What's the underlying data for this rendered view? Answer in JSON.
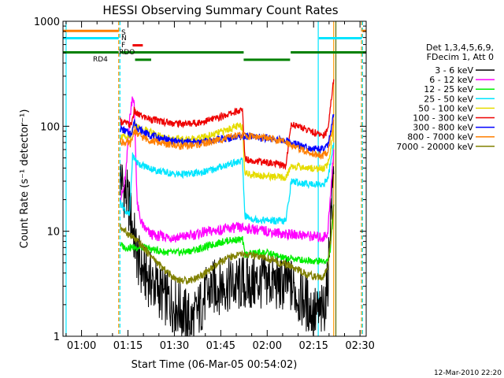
{
  "chart_data": {
    "type": "line",
    "title": "HESSI Observing Summary Count Rates",
    "xlabel": "Start Time (06-Mar-05 00:54:02)",
    "ylabel": "Count Rate (s⁻¹ detector⁻¹)",
    "yscale": "log",
    "ylim": [
      1,
      1000
    ],
    "xlim": [
      54,
      152
    ],
    "x_unit": "minutes after 00:00 UT",
    "x_ticks": [
      {
        "value": 60,
        "label": "01:00"
      },
      {
        "value": 75,
        "label": "01:15"
      },
      {
        "value": 90,
        "label": "01:30"
      },
      {
        "value": 105,
        "label": "01:45"
      },
      {
        "value": 120,
        "label": "02:00"
      },
      {
        "value": 135,
        "label": "02:15"
      },
      {
        "value": 150,
        "label": "02:30"
      }
    ],
    "y_ticks": [
      {
        "value": 1,
        "label": "1"
      },
      {
        "value": 10,
        "label": "10"
      },
      {
        "value": 100,
        "label": "100"
      },
      {
        "value": 1000,
        "label": "1000"
      }
    ],
    "legend_header": [
      "Det 1,3,4,5,6,9,",
      "FDecim 1, Att 0"
    ],
    "legend_position": "right",
    "footer": "12-Mar-2010 22:20",
    "flag_labels": [
      "S",
      "N",
      "F",
      "RDO",
      "RD4"
    ],
    "vlines": [
      {
        "x": 55,
        "color": "#00e5ff",
        "style": "solid"
      },
      {
        "x": 72,
        "color": "#ff9900",
        "style": "dashed"
      },
      {
        "x": 72.4,
        "color": "#00e5ff",
        "style": "dashed"
      },
      {
        "x": 136.5,
        "color": "#00e5ff",
        "style": "solid"
      },
      {
        "x": 141.5,
        "color": "#ff9900",
        "style": "solid"
      },
      {
        "x": 142.2,
        "color": "#556b00",
        "style": "solid"
      },
      {
        "x": 150.5,
        "color": "#ff9900",
        "style": "dashed"
      },
      {
        "x": 150.8,
        "color": "#00e5ff",
        "style": "dashed"
      }
    ],
    "flags": [
      {
        "name": "S",
        "color": "#ff7f00",
        "level": 810,
        "segments": [
          [
            54,
            72
          ],
          [
            150.7,
            152
          ]
        ]
      },
      {
        "name": "N",
        "color": "#00e5ff",
        "level": 690,
        "segments": [
          [
            54,
            72
          ],
          [
            136.7,
            150.6
          ]
        ]
      },
      {
        "name": "F",
        "color": "#ee0000",
        "level": 590,
        "segments": [
          [
            76.5,
            79.8
          ]
        ]
      },
      {
        "name": "RDO",
        "color": "#008000",
        "level": 505,
        "segments": [
          [
            54,
            72
          ],
          [
            72.6,
            112.4
          ],
          [
            127.6,
            152
          ]
        ]
      },
      {
        "name": "RD4",
        "color": "#008000",
        "level": 430,
        "segments": [
          [
            77.3,
            82.5
          ],
          [
            112.4,
            127.4
          ]
        ]
      }
    ],
    "series": [
      {
        "name": "3 - 6 keV",
        "color": "#000000",
        "x": [
          72.5,
          73.5,
          74.5,
          75.5,
          76.5,
          77.5,
          78.5,
          80,
          82,
          84,
          86,
          88,
          90,
          92,
          94,
          96,
          98,
          100,
          102,
          104,
          106,
          108,
          110,
          112,
          114,
          116,
          118,
          120,
          122,
          124,
          126,
          128,
          130,
          132,
          134,
          136,
          138,
          139.5,
          140.5,
          141.5
        ],
        "y": [
          33,
          26,
          22,
          17,
          11,
          7,
          5,
          4,
          3.5,
          3,
          2.5,
          2.2,
          2,
          1.8,
          1.5,
          1.4,
          1.8,
          2.4,
          2.8,
          3,
          3.1,
          3.1,
          3,
          3.2,
          3.1,
          3.2,
          3.3,
          3.4,
          3.3,
          3.1,
          3.2,
          3,
          2.4,
          2.2,
          1.8,
          1.6,
          1.7,
          3,
          14,
          35
        ]
      },
      {
        "name": "6 - 12 keV",
        "color": "#ff00ff",
        "x": [
          72.5,
          73.5,
          74.5,
          75.2,
          76,
          76.5,
          77,
          77.5,
          78,
          79,
          80,
          82,
          84,
          86,
          88,
          90,
          92,
          94,
          96,
          98,
          100,
          102,
          104,
          106,
          108,
          110,
          112,
          114,
          116,
          118,
          120,
          122,
          124,
          126,
          128,
          130,
          132,
          134,
          136,
          138,
          139.5,
          140.5,
          141.5
        ],
        "y": [
          21,
          24,
          40,
          95,
          150,
          200,
          160,
          55,
          18,
          13,
          11,
          9.5,
          9,
          9,
          8.8,
          8.7,
          8.8,
          9,
          9.2,
          9.5,
          9.8,
          10,
          10.2,
          10.4,
          10.7,
          10.8,
          10.7,
          10.6,
          10.4,
          10.2,
          10,
          9.8,
          9.6,
          9.4,
          9.3,
          9.3,
          9.2,
          9,
          8.8,
          8.7,
          9.5,
          22,
          60
        ]
      },
      {
        "name": "12 - 25 keV",
        "color": "#00ee00",
        "x": [
          72.5,
          74,
          76,
          78,
          80,
          82,
          84,
          86,
          88,
          90,
          92,
          94,
          96,
          98,
          100,
          102,
          104,
          106,
          108,
          110,
          112,
          112.8,
          114,
          116,
          118,
          120,
          122,
          124,
          126,
          127.8,
          130,
          132,
          134,
          136,
          138,
          139.5,
          140.5,
          141.5
        ],
        "y": [
          7.5,
          7,
          7,
          7,
          7,
          6.8,
          6.6,
          6.4,
          6.3,
          6.2,
          6.3,
          6.4,
          6.6,
          6.8,
          7.1,
          7.4,
          7.7,
          8,
          8.2,
          8.3,
          8.3,
          6,
          6.1,
          6.2,
          6.3,
          6.2,
          6,
          5.7,
          5.5,
          5.5,
          5.4,
          5.3,
          5.3,
          5.2,
          5.2,
          5.2,
          7,
          18
        ]
      },
      {
        "name": "25 - 50 keV",
        "color": "#00e5ff",
        "x": [
          72.5,
          74,
          75.5,
          76.5,
          77.5,
          78,
          80,
          82,
          84,
          86,
          88,
          90,
          92,
          94,
          96,
          98,
          100,
          102,
          104,
          106,
          108,
          110,
          112,
          112.8,
          114,
          116,
          118,
          120,
          122,
          124,
          126,
          127.8,
          130,
          132,
          134,
          136,
          138,
          139.5,
          140.5,
          141.5
        ],
        "y": [
          19,
          16,
          14,
          52,
          48,
          45,
          42,
          40,
          38,
          37,
          36,
          35,
          35,
          35,
          35.5,
          36,
          37,
          38.5,
          40,
          42,
          44,
          45,
          47,
          14,
          13.5,
          13,
          12.8,
          12.7,
          12.6,
          12.5,
          12.4,
          30,
          29,
          28.5,
          28.2,
          28.1,
          28,
          31,
          45,
          70
        ]
      },
      {
        "name": "50 - 100 keV",
        "color": "#e6dc00",
        "x": [
          72.5,
          74,
          76,
          77,
          78,
          80,
          82,
          84,
          86,
          88,
          90,
          92,
          94,
          96,
          98,
          100,
          102,
          104,
          106,
          108,
          110,
          112,
          112.8,
          114,
          116,
          118,
          120,
          122,
          124,
          126,
          127.8,
          130,
          132,
          134,
          136,
          138,
          139.5,
          140.5,
          141.5
        ],
        "y": [
          80,
          78,
          76,
          105,
          98,
          92,
          88,
          84,
          80,
          78,
          76,
          75,
          75,
          76,
          77,
          79,
          82,
          86,
          90,
          95,
          99,
          100,
          36,
          35,
          34.5,
          34,
          33.5,
          33,
          32.5,
          32,
          42,
          41,
          40.5,
          40,
          39.8,
          39.5,
          42,
          60,
          100
        ]
      },
      {
        "name": "100 - 300 keV",
        "color": "#ee0000",
        "x": [
          72.5,
          74,
          76,
          77,
          78,
          80,
          82,
          84,
          86,
          88,
          90,
          92,
          94,
          96,
          98,
          100,
          102,
          104,
          106,
          108,
          110,
          112,
          112.8,
          114,
          116,
          118,
          120,
          122,
          124,
          126,
          127.8,
          130,
          132,
          134,
          136,
          138,
          139.5,
          140.5,
          141.5
        ],
        "y": [
          112,
          108,
          102,
          140,
          130,
          123,
          118,
          114,
          111,
          109,
          107,
          106,
          106,
          107,
          109,
          112,
          116,
          120,
          126,
          132,
          138,
          142,
          50,
          48,
          47,
          46,
          45,
          44,
          43,
          42,
          105,
          100,
          95,
          90,
          85,
          82,
          90,
          160,
          280
        ]
      },
      {
        "name": "300 - 800 keV",
        "color": "#0000ff",
        "x": [
          72.5,
          74,
          76,
          77,
          78,
          80,
          82,
          84,
          86,
          88,
          90,
          92,
          94,
          96,
          98,
          100,
          102,
          104,
          106,
          108,
          110,
          112,
          114,
          116,
          118,
          120,
          122,
          124,
          126,
          128,
          130,
          132,
          134,
          136,
          138,
          139.5,
          140.5,
          141.5
        ],
        "y": [
          96,
          90,
          85,
          110,
          98,
          88,
          83,
          79,
          76,
          74,
          72,
          71,
          71,
          71,
          71,
          72,
          73,
          75,
          76,
          77,
          79,
          80,
          80,
          79,
          78,
          77,
          76,
          74,
          73,
          70,
          67,
          64,
          62,
          61,
          60,
          65,
          85,
          130
        ]
      },
      {
        "name": "800 - 7000 keV",
        "color": "#ff7f00",
        "x": [
          72.5,
          74,
          76,
          77,
          78,
          80,
          82,
          84,
          86,
          88,
          90,
          92,
          94,
          96,
          98,
          100,
          102,
          104,
          106,
          108,
          110,
          112,
          114,
          116,
          118,
          120,
          122,
          124,
          126,
          128,
          130,
          132,
          134,
          136,
          138,
          139.5,
          140.5,
          141.5
        ],
        "y": [
          72,
          70,
          68,
          92,
          84,
          78,
          74,
          71,
          69,
          67,
          66,
          65,
          65,
          66,
          67,
          69,
          71,
          74,
          76,
          79,
          81,
          82,
          81,
          80,
          78,
          77,
          75,
          73,
          71,
          66,
          62,
          58,
          56,
          54,
          53,
          57,
          75,
          115
        ]
      },
      {
        "name": "7000 - 20000 keV",
        "color": "#808000",
        "x": [
          72.5,
          74,
          76,
          78,
          80,
          82,
          84,
          86,
          88,
          90,
          92,
          94,
          96,
          98,
          100,
          102,
          104,
          106,
          108,
          110,
          112,
          114,
          116,
          118,
          120,
          122,
          124,
          126,
          128,
          130,
          132,
          134,
          136,
          138,
          139.5,
          140.5,
          141.5
        ],
        "y": [
          11,
          10,
          9,
          8,
          7,
          6,
          5.2,
          4.5,
          4,
          3.6,
          3.4,
          3.4,
          3.5,
          3.7,
          4,
          4.4,
          4.8,
          5.3,
          5.6,
          5.9,
          6,
          5.9,
          5.8,
          5.6,
          5.5,
          5.3,
          5,
          4.8,
          4.6,
          4.3,
          4,
          3.8,
          3.7,
          3.6,
          4.5,
          8,
          18
        ]
      }
    ]
  }
}
